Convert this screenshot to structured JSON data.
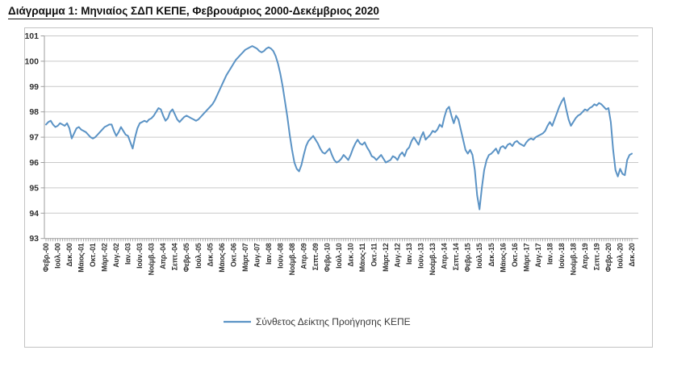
{
  "title": "Διάγραμμα 1: Μηνιαίος ΣΔΠ ΚΕΠΕ, Φεβρουάριος 2000-Δεκέμβριος 2020",
  "legend": {
    "label": "Σύνθετος Δείκτης Προήγησης ΚΕΠΕ"
  },
  "colors": {
    "line": "#5b93c5",
    "grid": "#c9c9c9",
    "axis": "#9e9e9e",
    "frame": "#c3c3c3",
    "tick_text": "#303030",
    "title_text": "#111111"
  },
  "chart_data": {
    "type": "line",
    "title": "Διάγραμμα 1: Μηνιαίος ΣΔΠ ΚΕΠΕ, Φεβρουάριος 2000-Δεκέμβριος 2020",
    "legend_entries": [
      "Σύνθετος Δείκτης Προήγησης ΚΕΠΕ"
    ],
    "legend_position": "bottom-center",
    "grid": "horizontal",
    "ylim": [
      93,
      101
    ],
    "y_ticks": [
      93,
      94,
      95,
      96,
      97,
      98,
      99,
      100,
      101
    ],
    "x_tick_step_months": 5,
    "x_tick_labels": [
      "Φεβρ.-00",
      "Ιούλ.-00",
      "Δεκ.-00",
      "Μάιος-01",
      "Οκτ.-01",
      "Μάρτ.-02",
      "Αυγ.-02",
      "Ιαν.-03",
      "Ιούν.-03",
      "Νοέμβ.-03",
      "Απρ.-04",
      "Σεπτ.-04",
      "Φεβρ.-05",
      "Ιούλ.-05",
      "Δεκ.-05",
      "Μάιος-06",
      "Οκτ.-06",
      "Μάρτ.-07",
      "Αυγ.-07",
      "Ιαν.-08",
      "Ιούν.-08",
      "Νοέμβ.-08",
      "Απρ.-09",
      "Σεπτ.-09",
      "Φεβρ.-10",
      "Ιούλ.-10",
      "Δεκ.-10",
      "Μάιος-11",
      "Οκτ.-11",
      "Μάρτ.-12",
      "Αυγ.-12",
      "Ιαν.-13",
      "Ιούν.-13",
      "Νοέμβ.-13",
      "Απρ.-14",
      "Σεπτ.-14",
      "Φεβρ.-15",
      "Ιούλ.-15",
      "Δεκ.-15",
      "Μάιος-16",
      "Οκτ.-16",
      "Μάρτ.-17",
      "Αυγ.-17",
      "Ιαν.-18",
      "Ιούν.-18",
      "Νοέμβ.-18",
      "Απρ.-19",
      "Σεπτ.-19",
      "Φεβρ.-20",
      "Ιούλ.-20",
      "Δεκ.-20"
    ],
    "series": [
      {
        "name": "Σύνθετος Δείκτης Προήγησης ΚΕΠΕ",
        "start_month": "2000-02",
        "end_month": "2020-12",
        "values": [
          97.5,
          97.6,
          97.65,
          97.5,
          97.4,
          97.45,
          97.55,
          97.5,
          97.45,
          97.55,
          97.35,
          96.95,
          97.15,
          97.35,
          97.4,
          97.3,
          97.25,
          97.2,
          97.1,
          97.0,
          96.95,
          97.0,
          97.1,
          97.2,
          97.3,
          97.4,
          97.45,
          97.5,
          97.5,
          97.25,
          97.05,
          97.2,
          97.4,
          97.25,
          97.1,
          97.05,
          96.8,
          96.55,
          97.0,
          97.35,
          97.55,
          97.6,
          97.65,
          97.6,
          97.7,
          97.75,
          97.85,
          98.0,
          98.15,
          98.1,
          97.85,
          97.65,
          97.75,
          98.0,
          98.1,
          97.9,
          97.7,
          97.6,
          97.7,
          97.8,
          97.85,
          97.8,
          97.75,
          97.7,
          97.65,
          97.7,
          97.8,
          97.9,
          98.0,
          98.1,
          98.2,
          98.3,
          98.45,
          98.65,
          98.85,
          99.05,
          99.25,
          99.45,
          99.6,
          99.75,
          99.9,
          100.05,
          100.15,
          100.25,
          100.35,
          100.45,
          100.5,
          100.55,
          100.6,
          100.55,
          100.5,
          100.4,
          100.35,
          100.4,
          100.5,
          100.55,
          100.5,
          100.4,
          100.2,
          99.9,
          99.5,
          99.0,
          98.4,
          97.8,
          97.1,
          96.5,
          96.0,
          95.75,
          95.65,
          95.9,
          96.3,
          96.65,
          96.85,
          96.95,
          97.05,
          96.9,
          96.75,
          96.55,
          96.4,
          96.35,
          96.45,
          96.55,
          96.3,
          96.1,
          96.0,
          96.05,
          96.15,
          96.3,
          96.2,
          96.1,
          96.3,
          96.55,
          96.75,
          96.9,
          96.75,
          96.7,
          96.8,
          96.6,
          96.45,
          96.25,
          96.2,
          96.1,
          96.2,
          96.3,
          96.15,
          96.0,
          96.05,
          96.1,
          96.25,
          96.2,
          96.1,
          96.3,
          96.4,
          96.25,
          96.5,
          96.6,
          96.85,
          97.0,
          96.85,
          96.7,
          97.0,
          97.2,
          96.9,
          97.0,
          97.1,
          97.25,
          97.2,
          97.3,
          97.5,
          97.4,
          97.8,
          98.1,
          98.2,
          97.85,
          97.55,
          97.85,
          97.7,
          97.3,
          96.9,
          96.5,
          96.35,
          96.5,
          96.3,
          95.7,
          94.7,
          94.15,
          95.0,
          95.7,
          96.1,
          96.3,
          96.35,
          96.45,
          96.55,
          96.35,
          96.6,
          96.65,
          96.55,
          96.7,
          96.75,
          96.65,
          96.8,
          96.85,
          96.75,
          96.7,
          96.65,
          96.8,
          96.9,
          96.95,
          96.9,
          97.0,
          97.05,
          97.1,
          97.15,
          97.25,
          97.45,
          97.6,
          97.45,
          97.7,
          97.95,
          98.2,
          98.4,
          98.55,
          98.1,
          97.7,
          97.45,
          97.6,
          97.75,
          97.85,
          97.9,
          98.0,
          98.1,
          98.05,
          98.15,
          98.2,
          98.3,
          98.25,
          98.35,
          98.3,
          98.2,
          98.1,
          98.15,
          97.6,
          96.5,
          95.7,
          95.45,
          95.75,
          95.55,
          95.5,
          96.1,
          96.3,
          96.35
        ]
      }
    ]
  }
}
